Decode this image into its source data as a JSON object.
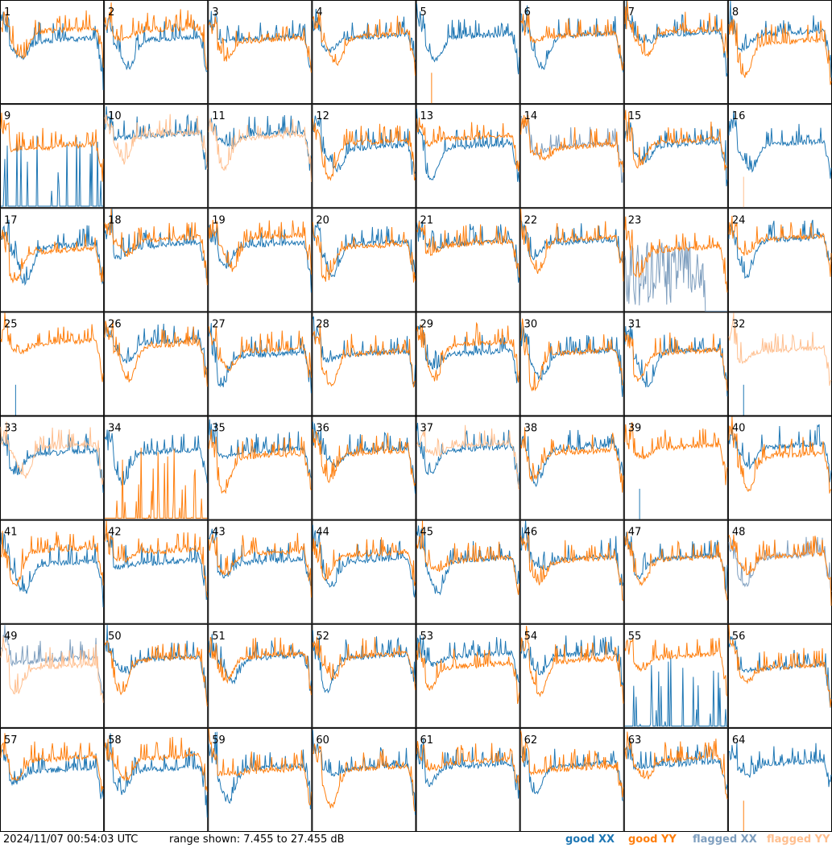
{
  "chart_data": {
    "type": "line",
    "description_unit": "dB",
    "range_min": 7.455,
    "range_max": 27.455,
    "panels": [
      {
        "label": "1",
        "xx": "good",
        "yy": "good"
      },
      {
        "label": "2",
        "xx": "good",
        "yy": "good"
      },
      {
        "label": "3",
        "xx": "good",
        "yy": "good"
      },
      {
        "label": "4",
        "xx": "good",
        "yy": "good"
      },
      {
        "label": "5",
        "xx": "good",
        "yy": "dead"
      },
      {
        "label": "6",
        "xx": "good",
        "yy": "good"
      },
      {
        "label": "7",
        "xx": "good",
        "yy": "good"
      },
      {
        "label": "8",
        "xx": "good",
        "yy": "good"
      },
      {
        "label": "9",
        "xx": "spiky",
        "yy": "good"
      },
      {
        "label": "10",
        "xx": "good",
        "yy": "flagged"
      },
      {
        "label": "11",
        "xx": "good",
        "yy": "flagged"
      },
      {
        "label": "12",
        "xx": "good",
        "yy": "good"
      },
      {
        "label": "13",
        "xx": "good",
        "yy": "good"
      },
      {
        "label": "14",
        "xx": "flagged",
        "yy": "good"
      },
      {
        "label": "15",
        "xx": "good",
        "yy": "good"
      },
      {
        "label": "16",
        "xx": "good",
        "yy": "dead-flagged"
      },
      {
        "label": "17",
        "xx": "good",
        "yy": "good"
      },
      {
        "label": "18",
        "xx": "good",
        "yy": "good"
      },
      {
        "label": "19",
        "xx": "good",
        "yy": "good"
      },
      {
        "label": "20",
        "xx": "good",
        "yy": "good"
      },
      {
        "label": "21",
        "xx": "good",
        "yy": "good"
      },
      {
        "label": "22",
        "xx": "good",
        "yy": "good"
      },
      {
        "label": "23",
        "xx": "flagged-noise",
        "yy": "good"
      },
      {
        "label": "24",
        "xx": "good",
        "yy": "good"
      },
      {
        "label": "25",
        "xx": "dead",
        "yy": "good"
      },
      {
        "label": "26",
        "xx": "good",
        "yy": "good"
      },
      {
        "label": "27",
        "xx": "good",
        "yy": "good"
      },
      {
        "label": "28",
        "xx": "good",
        "yy": "good"
      },
      {
        "label": "29",
        "xx": "good",
        "yy": "good"
      },
      {
        "label": "30",
        "xx": "good",
        "yy": "good"
      },
      {
        "label": "31",
        "xx": "good",
        "yy": "good"
      },
      {
        "label": "32",
        "xx": "dead",
        "yy": "flagged"
      },
      {
        "label": "33",
        "xx": "good",
        "yy": "flagged"
      },
      {
        "label": "34",
        "xx": "good",
        "yy": "spiky"
      },
      {
        "label": "35",
        "xx": "good",
        "yy": "good"
      },
      {
        "label": "36",
        "xx": "good",
        "yy": "good"
      },
      {
        "label": "37",
        "xx": "good",
        "yy": "flagged"
      },
      {
        "label": "38",
        "xx": "good",
        "yy": "good"
      },
      {
        "label": "39",
        "xx": "dead",
        "yy": "good"
      },
      {
        "label": "40",
        "xx": "good",
        "yy": "good"
      },
      {
        "label": "41",
        "xx": "good",
        "yy": "good"
      },
      {
        "label": "42",
        "xx": "good",
        "yy": "good"
      },
      {
        "label": "43",
        "xx": "good",
        "yy": "good"
      },
      {
        "label": "44",
        "xx": "good",
        "yy": "good"
      },
      {
        "label": "45",
        "xx": "good",
        "yy": "good"
      },
      {
        "label": "46",
        "xx": "good",
        "yy": "good"
      },
      {
        "label": "47",
        "xx": "good",
        "yy": "good"
      },
      {
        "label": "48",
        "xx": "flagged",
        "yy": "good"
      },
      {
        "label": "49",
        "xx": "flagged",
        "yy": "flagged"
      },
      {
        "label": "50",
        "xx": "good",
        "yy": "good"
      },
      {
        "label": "51",
        "xx": "good",
        "yy": "good"
      },
      {
        "label": "52",
        "xx": "good",
        "yy": "good"
      },
      {
        "label": "53",
        "xx": "good",
        "yy": "good"
      },
      {
        "label": "54",
        "xx": "good",
        "yy": "good"
      },
      {
        "label": "55",
        "xx": "spiky",
        "yy": "good"
      },
      {
        "label": "56",
        "xx": "good",
        "yy": "good"
      },
      {
        "label": "57",
        "xx": "good",
        "yy": "good"
      },
      {
        "label": "58",
        "xx": "good",
        "yy": "good"
      },
      {
        "label": "59",
        "xx": "good",
        "yy": "good"
      },
      {
        "label": "60",
        "xx": "good",
        "yy": "good"
      },
      {
        "label": "61",
        "xx": "good",
        "yy": "good"
      },
      {
        "label": "62",
        "xx": "good",
        "yy": "good"
      },
      {
        "label": "63",
        "xx": "good",
        "yy": "good"
      },
      {
        "label": "64",
        "xx": "good",
        "yy": "dead"
      }
    ],
    "series": [
      {
        "name": "good XX",
        "color": "#1f77b4"
      },
      {
        "name": "good YY",
        "color": "#ff7f0e"
      },
      {
        "name": "flagged XX",
        "color": "#7f9fbf"
      },
      {
        "name": "flagged YY",
        "color": "#ffbf8f"
      }
    ]
  },
  "footer": {
    "timestamp": "2024/11/07 00:54:03 UTC",
    "range_text": "range shown: 7.455 to 27.455 dB",
    "legend_good_xx": "good XX",
    "legend_good_yy": "good YY",
    "legend_flagged_xx": "flagged XX",
    "legend_flagged_yy": "flagged YY"
  }
}
